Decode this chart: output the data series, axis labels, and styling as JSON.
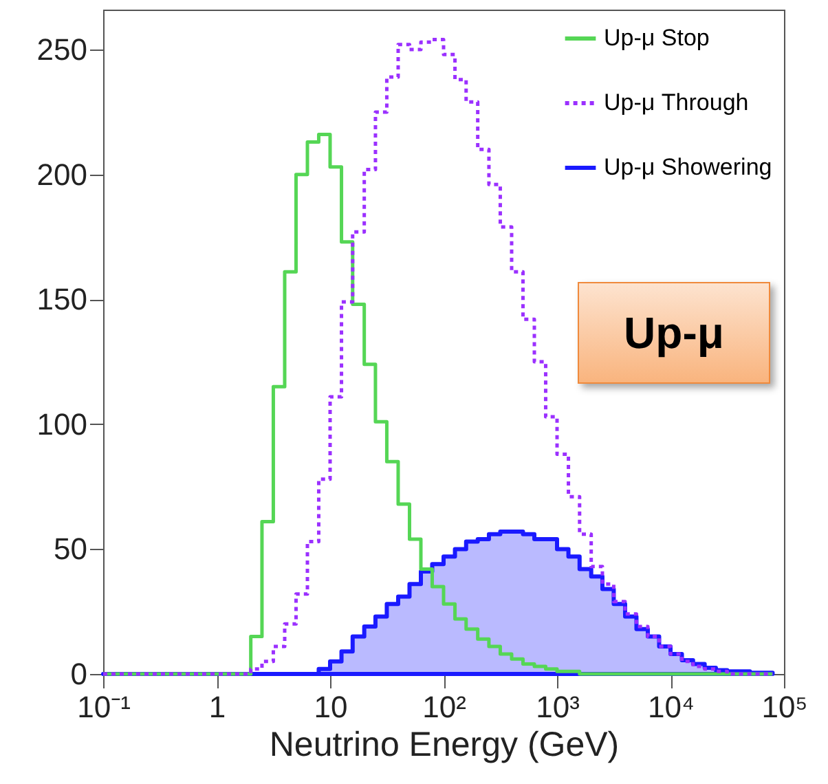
{
  "chart_data": {
    "type": "step",
    "xlabel": "Neutrino Energy (GeV)",
    "log": "x",
    "x": [
      0.1,
      0.126,
      0.158,
      0.2,
      0.251,
      0.316,
      0.398,
      0.501,
      0.631,
      0.794,
      1,
      1.26,
      1.58,
      2,
      2.51,
      3.16,
      3.98,
      5.01,
      6.31,
      7.94,
      10,
      12.6,
      15.8,
      20,
      25.1,
      31.6,
      39.8,
      50.1,
      63.1,
      79.4,
      100,
      126,
      158,
      200,
      251,
      316,
      398,
      501,
      631,
      794,
      1000,
      1260,
      1580,
      2000,
      2510,
      3160,
      3980,
      5010,
      6310,
      7940,
      10000,
      12600,
      15800,
      20000,
      25100,
      31600,
      39800,
      50100,
      63100,
      79400
    ],
    "series": [
      {
        "name": "Up-μ Stop",
        "color": "#55d655",
        "line_style": "solid",
        "values": [
          0,
          0,
          0,
          0,
          0,
          0,
          0,
          0,
          0,
          0,
          0,
          0,
          0,
          15,
          61,
          115,
          161,
          200,
          213,
          216,
          203,
          173,
          148,
          124,
          101,
          85,
          68,
          54,
          42,
          35,
          28,
          22,
          18,
          14,
          11,
          8,
          6,
          4,
          3,
          2,
          1,
          1,
          0,
          0,
          0,
          0,
          0,
          0,
          0,
          0,
          0,
          0,
          0,
          0,
          0,
          0,
          0,
          0,
          0,
          0
        ]
      },
      {
        "name": "Up-μ Through",
        "color": "#9b30ff",
        "line_style": "dotted",
        "values": [
          0,
          0,
          0,
          0,
          0,
          0,
          0,
          0,
          0,
          0,
          0,
          0,
          0,
          2,
          5,
          11,
          20,
          32,
          53,
          78,
          111,
          149,
          177,
          202,
          225,
          239,
          252,
          250,
          253,
          254,
          248,
          238,
          229,
          210,
          196,
          179,
          161,
          142,
          125,
          103,
          88,
          71,
          56,
          43,
          36,
          29,
          24,
          19,
          15,
          11,
          8,
          5,
          3,
          2,
          1,
          0,
          0,
          0,
          0,
          0
        ]
      },
      {
        "name": "Up-μ Showering",
        "type": "area",
        "color": "#1a1aff",
        "line_style": "solid",
        "values": [
          0,
          0,
          0,
          0,
          0,
          0,
          0,
          0,
          0,
          0,
          0,
          0,
          0,
          0,
          0,
          0,
          0,
          0,
          0,
          2,
          5,
          9,
          15,
          19,
          23,
          28,
          31,
          36,
          41,
          44,
          47,
          50,
          53,
          54,
          56,
          57,
          57,
          56,
          54,
          54,
          50,
          47,
          42,
          39,
          34,
          28,
          23,
          18,
          15,
          11,
          8,
          5.5,
          4,
          2.5,
          1.5,
          1,
          1,
          0.5,
          0.5,
          0
        ]
      }
    ],
    "xlim": [
      0.1,
      100000
    ],
    "xticks": [
      {
        "value": 0.1,
        "label": "10⁻¹"
      },
      1,
      10,
      {
        "value": 100,
        "label": "10²"
      },
      {
        "value": 1000,
        "label": "10³"
      },
      {
        "value": 10000,
        "label": "10⁴"
      },
      {
        "value": 100000,
        "label": "10⁵"
      }
    ],
    "ylim": [
      0,
      266
    ],
    "yticks": [
      0,
      50,
      100,
      150,
      200,
      250
    ],
    "grid": false,
    "legend": "top right",
    "annotations": [
      "Up-μ"
    ]
  }
}
